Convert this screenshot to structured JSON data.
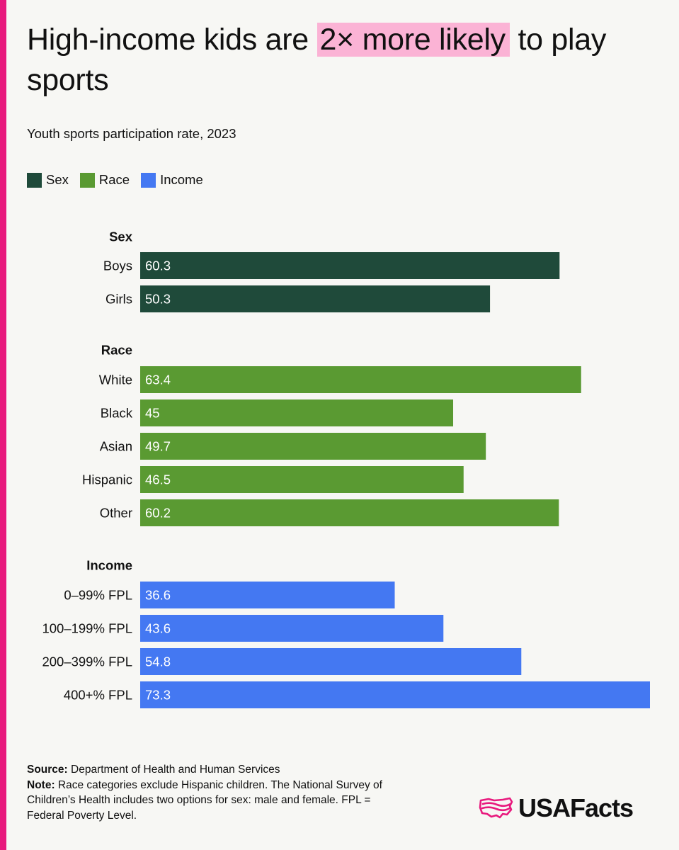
{
  "title": {
    "prefix": "High-income kids are ",
    "highlight": "2× more likely",
    "suffix": " to play sports"
  },
  "subtitle": "Youth sports participation rate, 2023",
  "colors": {
    "accent": "#e8197d",
    "highlight": "#fbb3d5",
    "Sex": "#1f4a3a",
    "Race": "#5a9a32",
    "Income": "#4478f2"
  },
  "legend": [
    {
      "label": "Sex",
      "color": "#1f4a3a"
    },
    {
      "label": "Race",
      "color": "#5a9a32"
    },
    {
      "label": "Income",
      "color": "#4478f2"
    }
  ],
  "chart_data": {
    "type": "bar",
    "orientation": "horizontal",
    "title": "High-income kids are 2× more likely to play sports",
    "subtitle": "Youth sports participation rate, 2023",
    "xlim": [
      0,
      73.3
    ],
    "grid": false,
    "legend_position": "top-left",
    "groups": [
      {
        "name": "Sex",
        "categories": [
          "Boys",
          "Girls"
        ],
        "values": [
          60.3,
          50.3
        ]
      },
      {
        "name": "Race",
        "categories": [
          "White",
          "Black",
          "Asian",
          "Hispanic",
          "Other"
        ],
        "values": [
          63.4,
          45,
          49.7,
          46.5,
          60.2
        ]
      },
      {
        "name": "Income",
        "categories": [
          "0–99% FPL",
          "100–199% FPL",
          "200–399% FPL",
          "400+% FPL"
        ],
        "values": [
          36.6,
          43.6,
          54.8,
          73.3
        ]
      }
    ]
  },
  "footer": {
    "source_label": "Source:",
    "source_text": " Department of Health and Human Services",
    "note_label": "Note:",
    "note_text": " Race categories exclude Hispanic children. The National Survey of Children’s Health includes two options for sex: male and female. FPL = Federal Poverty Level."
  },
  "logo": {
    "text": "USAFacts",
    "icon": "us-map-flag-icon"
  }
}
